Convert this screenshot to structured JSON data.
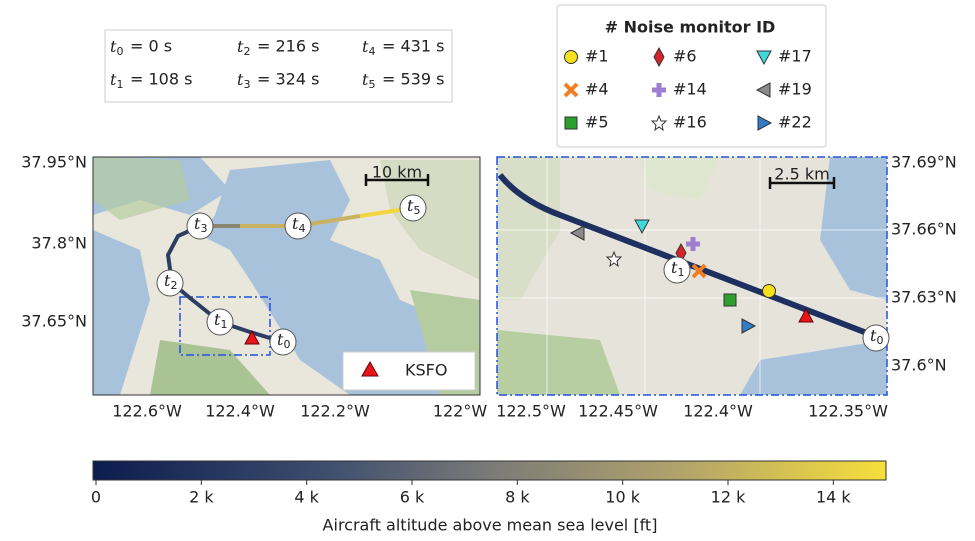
{
  "time_symbol": "t",
  "time_table": [
    {
      "index": "0",
      "value": "= 0 s"
    },
    {
      "index": "2",
      "value": "= 216 s"
    },
    {
      "index": "4",
      "value": "= 431 s"
    },
    {
      "index": "1",
      "value": "= 108 s"
    },
    {
      "index": "3",
      "value": "= 324 s"
    },
    {
      "index": "5",
      "value": "= 539 s"
    }
  ],
  "legend": {
    "title": "# Noise monitor ID",
    "items": [
      "#1",
      "#6",
      "#17",
      "#4",
      "#14",
      "#19",
      "#5",
      "#16",
      "#22"
    ]
  },
  "left_map": {
    "lat_labels": [
      "37.95°N",
      "37.8°N",
      "37.65°N"
    ],
    "lon_labels": [
      "122.6°W",
      "122.4°W",
      "122.2°W",
      "122°W"
    ],
    "scale_bar": "10 km",
    "path_labels": [
      "0",
      "1",
      "2",
      "3",
      "4",
      "5"
    ],
    "airport": "KSFO"
  },
  "right_map": {
    "lat_labels": [
      "37.69°N",
      "37.66°N",
      "37.63°N",
      "37.6°N"
    ],
    "lon_labels": [
      "122.5°W",
      "122.45°W",
      "122.4°W",
      "122.35°W"
    ],
    "scale_bar": "2.5 km",
    "path_labels": [
      "1",
      "0"
    ]
  },
  "colorbar": {
    "label": "Aircraft altitude above mean sea level [ft]",
    "lim": [
      0,
      15000
    ],
    "ticks": [
      {
        "value": 0,
        "label": "0"
      },
      {
        "value": 2000,
        "label": "2 k"
      },
      {
        "value": 4000,
        "label": "4 k"
      },
      {
        "value": 6000,
        "label": "6 k"
      },
      {
        "value": 8000,
        "label": "8 k"
      },
      {
        "value": 10000,
        "label": "10 k"
      },
      {
        "value": 12000,
        "label": "12 k"
      },
      {
        "value": 14000,
        "label": "14 k"
      }
    ]
  }
}
